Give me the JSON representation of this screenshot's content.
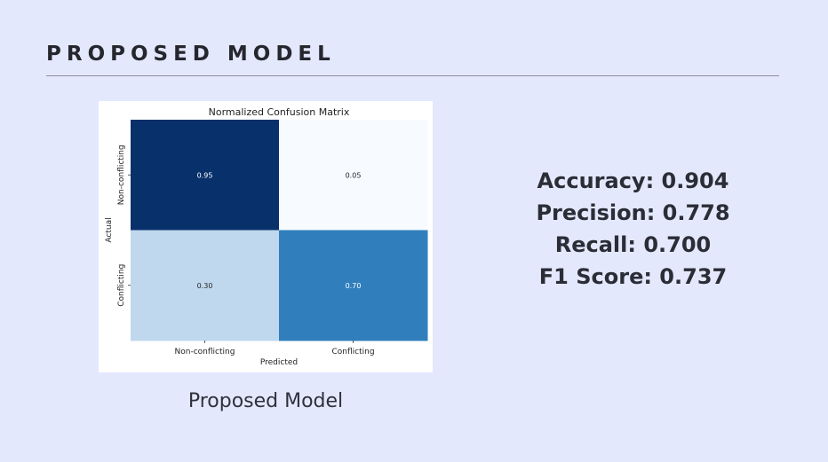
{
  "slide": {
    "title": "PROPOSED MODEL",
    "caption": "Proposed Model"
  },
  "metrics": [
    {
      "label": "Accuracy",
      "value": "0.904"
    },
    {
      "label": "Precision",
      "value": "0.778"
    },
    {
      "label": "Recall",
      "value": "0.700"
    },
    {
      "label": "F1 Score",
      "value": "0.737"
    }
  ],
  "chart_data": {
    "type": "heatmap",
    "title": "Normalized Confusion Matrix",
    "xlabel": "Predicted",
    "ylabel": "Actual",
    "x_categories": [
      "Non-conflicting",
      "Conflicting"
    ],
    "y_categories": [
      "Non-conflicting",
      "Conflicting"
    ],
    "values": [
      [
        0.95,
        0.05
      ],
      [
        0.3,
        0.7
      ]
    ],
    "value_labels": [
      [
        "0.95",
        "0.05"
      ],
      [
        "0.30",
        "0.70"
      ]
    ],
    "colormap": "Blues",
    "colorbar": false,
    "grid": false
  }
}
